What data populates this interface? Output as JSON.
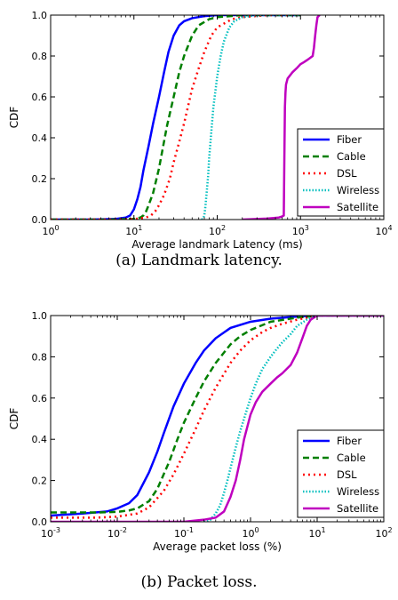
{
  "chart_data": [
    {
      "type": "line",
      "caption": "(a) Landmark latency.",
      "xlabel": "Average landmark Latency (ms)",
      "ylabel": "CDF",
      "xscale": "log",
      "xlim": [
        1,
        10000
      ],
      "ylim": [
        0,
        1
      ],
      "grid": false,
      "legend_position": "lower-right",
      "x_ticks": [
        {
          "base": "10",
          "exp": "0"
        },
        {
          "base": "10",
          "exp": "1"
        },
        {
          "base": "10",
          "exp": "2"
        },
        {
          "base": "10",
          "exp": "3"
        },
        {
          "base": "10",
          "exp": "4"
        }
      ],
      "y_ticks": [
        "0.0",
        "0.2",
        "0.4",
        "0.6",
        "0.8",
        "1.0"
      ],
      "series": [
        {
          "name": "Fiber",
          "color": "#0000ff",
          "dash": "solid",
          "x": [
            1,
            3,
            6,
            8,
            9,
            10,
            11,
            12,
            13,
            15,
            17,
            20,
            23,
            26,
            30,
            35,
            40,
            50,
            70,
            100,
            200,
            1000
          ],
          "y": [
            0,
            0,
            0.003,
            0.01,
            0.02,
            0.05,
            0.1,
            0.16,
            0.24,
            0.36,
            0.47,
            0.6,
            0.72,
            0.82,
            0.9,
            0.95,
            0.97,
            0.985,
            0.995,
            1.0,
            1.0,
            1.0
          ]
        },
        {
          "name": "Cable",
          "color": "#007f00",
          "dash": "dashed",
          "x": [
            1,
            5,
            10,
            12,
            13,
            14,
            15,
            17,
            20,
            22,
            25,
            30,
            35,
            40,
            50,
            60,
            80,
            100,
            200,
            1000
          ],
          "y": [
            0,
            0,
            0.003,
            0.01,
            0.02,
            0.04,
            0.07,
            0.13,
            0.25,
            0.34,
            0.46,
            0.6,
            0.72,
            0.8,
            0.9,
            0.95,
            0.98,
            0.99,
            1.0,
            1.0
          ]
        },
        {
          "name": "DSL",
          "color": "#ff0000",
          "dash": "dotted",
          "x": [
            1,
            5,
            10,
            14,
            16,
            18,
            20,
            23,
            27,
            30,
            35,
            40,
            45,
            50,
            60,
            70,
            85,
            100,
            150,
            200,
            400,
            1000
          ],
          "y": [
            0,
            0,
            0.002,
            0.01,
            0.02,
            0.04,
            0.07,
            0.12,
            0.2,
            0.28,
            0.38,
            0.47,
            0.56,
            0.64,
            0.74,
            0.82,
            0.9,
            0.94,
            0.98,
            0.99,
            1.0,
            1.0
          ]
        },
        {
          "name": "Wireless",
          "color": "#00bfbf",
          "dash": "dotted-fine",
          "x": [
            65,
            68,
            70,
            72,
            75,
            78,
            80,
            85,
            90,
            100,
            110,
            120,
            140,
            160,
            200,
            300,
            500,
            1000
          ],
          "y": [
            0,
            0.005,
            0.02,
            0.06,
            0.14,
            0.22,
            0.3,
            0.43,
            0.55,
            0.7,
            0.8,
            0.87,
            0.94,
            0.97,
            0.99,
            1.0,
            1.0,
            1.0
          ]
        },
        {
          "name": "Satellite",
          "color": "#bf00bf",
          "dash": "solid",
          "x": [
            200,
            400,
            550,
            600,
            630,
            640,
            650,
            660,
            670,
            700,
            800,
            900,
            1000,
            1100,
            1200,
            1300,
            1400,
            1450,
            1500,
            1550,
            1600,
            1700
          ],
          "y": [
            0,
            0.005,
            0.01,
            0.015,
            0.02,
            0.3,
            0.55,
            0.62,
            0.66,
            0.69,
            0.72,
            0.74,
            0.76,
            0.77,
            0.78,
            0.79,
            0.8,
            0.84,
            0.9,
            0.95,
            0.99,
            1.0
          ]
        }
      ]
    },
    {
      "type": "line",
      "caption": "(b) Packet loss.",
      "xlabel": "Average packet loss (%)",
      "ylabel": "CDF",
      "xscale": "log",
      "xlim": [
        0.001,
        100
      ],
      "ylim": [
        0,
        1
      ],
      "grid": false,
      "legend_position": "lower-right",
      "x_ticks": [
        {
          "base": "10",
          "exp": "-3"
        },
        {
          "base": "10",
          "exp": "-2"
        },
        {
          "base": "10",
          "exp": "-1"
        },
        {
          "base": "10",
          "exp": "0"
        },
        {
          "base": "10",
          "exp": "1"
        },
        {
          "base": "10",
          "exp": "2"
        }
      ],
      "y_ticks": [
        "0.0",
        "0.2",
        "0.4",
        "0.6",
        "0.8",
        "1.0"
      ],
      "series": [
        {
          "name": "Fiber",
          "color": "#0000ff",
          "dash": "solid",
          "x": [
            0.001,
            0.003,
            0.007,
            0.01,
            0.015,
            0.02,
            0.03,
            0.04,
            0.05,
            0.07,
            0.1,
            0.15,
            0.2,
            0.3,
            0.5,
            1,
            2,
            5,
            10,
            100
          ],
          "y": [
            0.03,
            0.04,
            0.05,
            0.065,
            0.09,
            0.13,
            0.24,
            0.34,
            0.43,
            0.56,
            0.67,
            0.77,
            0.83,
            0.89,
            0.94,
            0.97,
            0.985,
            0.995,
            1.0,
            1.0
          ]
        },
        {
          "name": "Cable",
          "color": "#007f00",
          "dash": "dashed",
          "x": [
            0.001,
            0.005,
            0.01,
            0.015,
            0.02,
            0.03,
            0.04,
            0.06,
            0.08,
            0.1,
            0.15,
            0.2,
            0.3,
            0.5,
            0.7,
            1,
            2,
            5,
            10,
            100
          ],
          "y": [
            0.045,
            0.045,
            0.048,
            0.055,
            0.065,
            0.1,
            0.16,
            0.29,
            0.4,
            0.48,
            0.6,
            0.68,
            0.77,
            0.86,
            0.9,
            0.93,
            0.97,
            0.99,
            1.0,
            1.0
          ]
        },
        {
          "name": "DSL",
          "color": "#ff0000",
          "dash": "dotted",
          "x": [
            0.001,
            0.005,
            0.01,
            0.02,
            0.03,
            0.05,
            0.07,
            0.1,
            0.15,
            0.2,
            0.3,
            0.5,
            0.7,
            1,
            1.5,
            2,
            3,
            5,
            10,
            100
          ],
          "y": [
            0.02,
            0.02,
            0.025,
            0.04,
            0.07,
            0.15,
            0.23,
            0.33,
            0.45,
            0.54,
            0.65,
            0.77,
            0.83,
            0.88,
            0.92,
            0.94,
            0.96,
            0.98,
            1.0,
            1.0
          ]
        },
        {
          "name": "Wireless",
          "color": "#00bfbf",
          "dash": "dotted-fine",
          "x": [
            0.2,
            0.25,
            0.3,
            0.35,
            0.4,
            0.45,
            0.5,
            0.6,
            0.7,
            0.8,
            1,
            1.2,
            1.5,
            2,
            2.5,
            3,
            4,
            5,
            7,
            10,
            100
          ],
          "y": [
            0,
            0.01,
            0.04,
            0.08,
            0.14,
            0.2,
            0.26,
            0.36,
            0.44,
            0.5,
            0.6,
            0.67,
            0.74,
            0.8,
            0.84,
            0.87,
            0.91,
            0.95,
            0.98,
            1.0,
            1.0
          ]
        },
        {
          "name": "Satellite",
          "color": "#bf00bf",
          "dash": "solid",
          "x": [
            0.001,
            0.1,
            0.2,
            0.3,
            0.4,
            0.5,
            0.6,
            0.7,
            0.8,
            1,
            1.2,
            1.5,
            2,
            2.5,
            3,
            4,
            5,
            6,
            7,
            8,
            10,
            100
          ],
          "y": [
            0,
            0,
            0.01,
            0.02,
            0.05,
            0.12,
            0.2,
            0.3,
            0.4,
            0.52,
            0.58,
            0.63,
            0.67,
            0.7,
            0.72,
            0.76,
            0.82,
            0.89,
            0.95,
            0.98,
            1.0,
            1.0
          ]
        }
      ]
    }
  ]
}
